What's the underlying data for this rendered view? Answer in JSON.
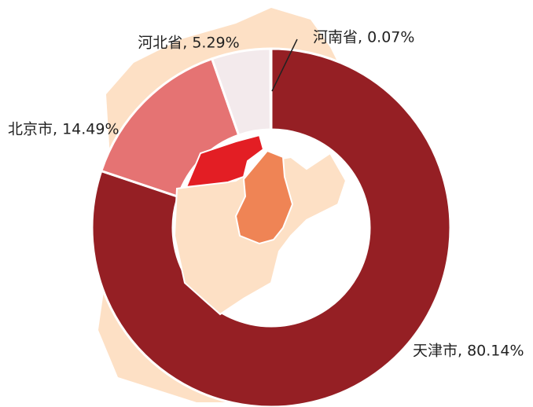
{
  "chart_data": {
    "type": "donut",
    "values": [
      80.14,
      14.49,
      5.29,
      0.07
    ],
    "value_labels": [
      "天津市, 80.14%",
      "北京市, 14.49%",
      "河北省, 5.29%",
      "河南省, 0.07%"
    ],
    "colors": [
      "#951f24",
      "#e57373",
      "#f3eaec",
      "#d9c4c6"
    ]
  }
}
